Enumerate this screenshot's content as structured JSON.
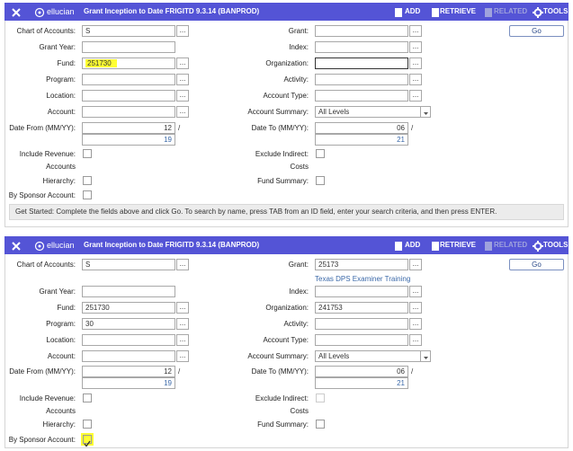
{
  "lookup_button": "...",
  "panels": [
    {
      "header": {
        "brand": "ellucian",
        "title": "Grant Inception to Date FRIGITD 9.3.14 (BANPROD)",
        "actions": [
          "ADD",
          "RETRIEVE",
          "RELATED",
          "TOOLS"
        ]
      },
      "go": "Go",
      "left": [
        {
          "label": "Chart of Accounts:",
          "value": "S"
        },
        {
          "label": "Grant Year:"
        },
        {
          "label": "Fund:",
          "value": "251730"
        },
        {
          "label": "Program:"
        },
        {
          "label": "Location:"
        },
        {
          "label": "Account:"
        },
        {
          "label": "Date From (MM/YY):",
          "values": [
            "12",
            "19"
          ],
          "separator": "/"
        },
        {
          "label": "Include Revenue:",
          "label_line2": "Accounts"
        },
        {
          "label": "Hierarchy:"
        },
        {
          "label": "By Sponsor Account:"
        }
      ],
      "right": [
        {
          "label": "Grant:"
        },
        {
          "label": "Index:"
        },
        {
          "label": "Organization:"
        },
        {
          "label": "Activity:"
        },
        {
          "label": "Account Type:"
        },
        {
          "label": "Account Summary:",
          "value": "All Levels"
        },
        {
          "label": "Date To (MM/YY):",
          "values": [
            "06",
            "21"
          ],
          "separator": "/"
        },
        {
          "label": "Exclude Indirect:",
          "label_line2": "Costs"
        },
        {
          "label": "Fund Summary:"
        }
      ],
      "status": "Get Started: Complete the fields above and click Go. To search by name, press TAB from an ID field, enter your search criteria, and then press ENTER."
    },
    {
      "header": {
        "brand": "ellucian",
        "title": "Grant Inception to Date FRIGITD 9.3.14 (BANPROD)",
        "actions": [
          "ADD",
          "RETRIEVE",
          "RELATED",
          "TOOLS"
        ]
      },
      "go": "Go",
      "left": [
        {
          "label": "Chart of Accounts:",
          "value": "S"
        },
        {
          "label": "Grant Year:"
        },
        {
          "label": "Fund:",
          "value": "251730"
        },
        {
          "label": "Program:",
          "value": "30"
        },
        {
          "label": "Location:"
        },
        {
          "label": "Account:"
        },
        {
          "label": "Date From (MM/YY):",
          "values": [
            "12",
            "19"
          ],
          "separator": "/"
        },
        {
          "label": "Include Revenue:",
          "label_line2": "Accounts"
        },
        {
          "label": "Hierarchy:"
        },
        {
          "label": "By Sponsor Account:"
        }
      ],
      "right": [
        {
          "label": "Grant:",
          "value": "25173",
          "description": "Texas DPS Examiner Training"
        },
        {
          "label": "Index:"
        },
        {
          "label": "Organization:",
          "value": "241753"
        },
        {
          "label": "Activity:"
        },
        {
          "label": "Account Type:"
        },
        {
          "label": "Account Summary:",
          "value": "All Levels"
        },
        {
          "label": "Date To (MM/YY):",
          "values": [
            "06",
            "21"
          ],
          "separator": "/"
        },
        {
          "label": "Exclude Indirect:",
          "label_line2": "Costs"
        },
        {
          "label": "Fund Summary:"
        }
      ]
    }
  ]
}
